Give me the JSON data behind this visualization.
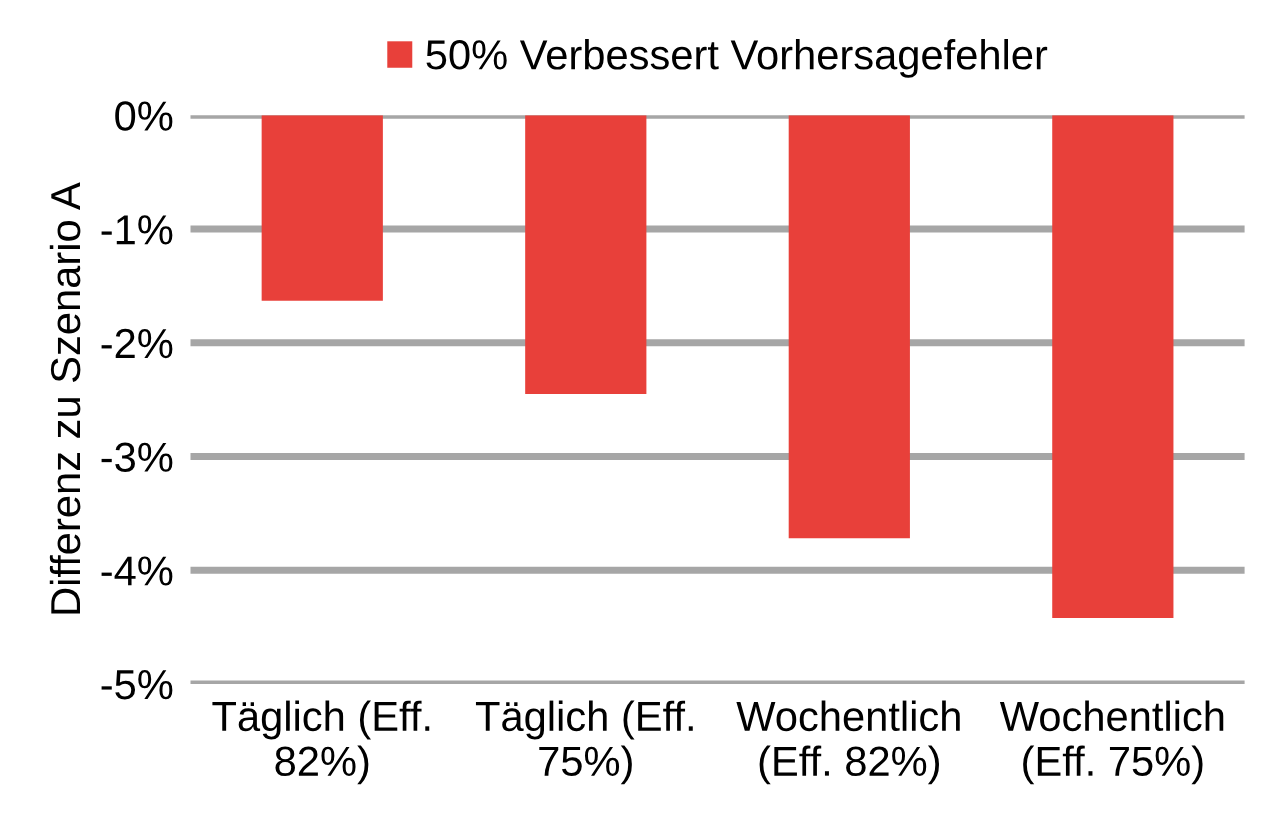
{
  "chart_data": {
    "type": "bar",
    "ylabel": "Differenz zu Szenario A",
    "categories": [
      "Täglich (Eff.\n82%)",
      "Täglich (Eff.\n75%)",
      "Wochentlich\n(Eff. 82%)",
      "Wochentlich\n(Eff. 75%)"
    ],
    "series": [
      {
        "name": "50% Verbessert Vorhersagefehler",
        "color": "#e8403a",
        "values": [
          -1.63,
          -2.45,
          -3.72,
          -4.42
        ]
      }
    ],
    "ylim": [
      -5,
      0
    ],
    "yticks": [
      {
        "value": -5,
        "label": "-5%"
      },
      {
        "value": -4,
        "label": "-4%"
      },
      {
        "value": -3,
        "label": "-3%"
      },
      {
        "value": -2,
        "label": "-2%"
      },
      {
        "value": -1,
        "label": "-1%"
      },
      {
        "value": 0,
        "label": "0%"
      }
    ],
    "grid": "y",
    "legend": "top"
  }
}
